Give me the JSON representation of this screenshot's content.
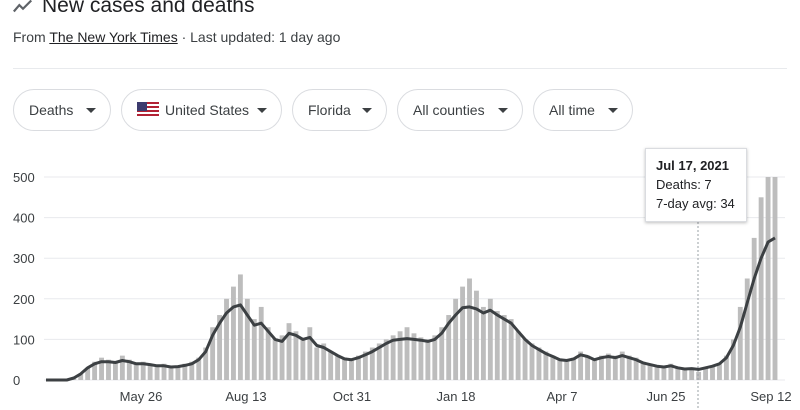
{
  "header": {
    "title": "New cases and deaths",
    "source_prefix": "From",
    "source_link": "The New York Times",
    "updated": " · Last updated: 1 day ago"
  },
  "filters": [
    {
      "label": "Deaths",
      "icon": null
    },
    {
      "label": "United States",
      "icon": "us-flag-icon"
    },
    {
      "label": "Florida",
      "icon": null
    },
    {
      "label": "All counties",
      "icon": null
    },
    {
      "label": "All time",
      "icon": null
    }
  ],
  "tooltip": {
    "date": "Jul 17, 2021",
    "deaths": "Deaths: 7",
    "avg": "7-day avg: 34"
  },
  "colors": {
    "bars": "#bdbdbd",
    "line": "#3c4043",
    "grid": "#e8eaed",
    "axis_text": "#3c4043"
  },
  "chart_data": {
    "type": "bar",
    "title": "",
    "xlabel": "",
    "ylabel": "",
    "ylim": [
      0,
      500
    ],
    "yticks": [
      0,
      100,
      200,
      300,
      400,
      500
    ],
    "xtick_labels": [
      "May 26",
      "Aug 13",
      "Oct 31",
      "Jan 18",
      "Apr 7",
      "Jun 25",
      "Sep 12"
    ],
    "grid": true,
    "series": [
      {
        "name": "Deaths",
        "values": [
          0,
          0,
          0,
          0,
          5,
          15,
          30,
          45,
          55,
          50,
          45,
          60,
          50,
          40,
          45,
          40,
          35,
          40,
          30,
          35,
          40,
          45,
          55,
          80,
          130,
          160,
          200,
          230,
          260,
          200,
          150,
          180,
          130,
          100,
          110,
          140,
          120,
          100,
          130,
          80,
          90,
          70,
          60,
          55,
          50,
          60,
          70,
          80,
          90,
          100,
          110,
          120,
          130,
          115,
          105,
          100,
          110,
          130,
          160,
          200,
          230,
          250,
          220,
          180,
          200,
          170,
          160,
          150,
          120,
          100,
          90,
          80,
          70,
          60,
          50,
          45,
          55,
          70,
          60,
          50,
          60,
          65,
          60,
          70,
          60,
          55,
          45,
          40,
          35,
          30,
          40,
          30,
          25,
          30,
          20,
          30,
          35,
          40,
          60,
          100,
          180,
          250,
          350,
          450,
          500,
          500
        ]
      },
      {
        "name": "7-day avg",
        "values": [
          0,
          0,
          0,
          0,
          5,
          15,
          30,
          40,
          45,
          45,
          43,
          48,
          45,
          40,
          40,
          38,
          35,
          35,
          32,
          33,
          36,
          40,
          50,
          70,
          110,
          140,
          165,
          180,
          185,
          160,
          135,
          140,
          120,
          100,
          95,
          115,
          110,
          100,
          105,
          85,
          80,
          70,
          60,
          52,
          50,
          55,
          62,
          70,
          80,
          90,
          98,
          100,
          102,
          100,
          98,
          95,
          100,
          115,
          140,
          160,
          178,
          180,
          175,
          165,
          172,
          160,
          150,
          140,
          120,
          100,
          85,
          75,
          65,
          58,
          50,
          48,
          52,
          62,
          58,
          50,
          55,
          58,
          55,
          60,
          55,
          50,
          42,
          38,
          34,
          32,
          35,
          30,
          27,
          28,
          26,
          30,
          34,
          40,
          55,
          85,
          130,
          190,
          250,
          300,
          340,
          350
        ]
      }
    ]
  }
}
